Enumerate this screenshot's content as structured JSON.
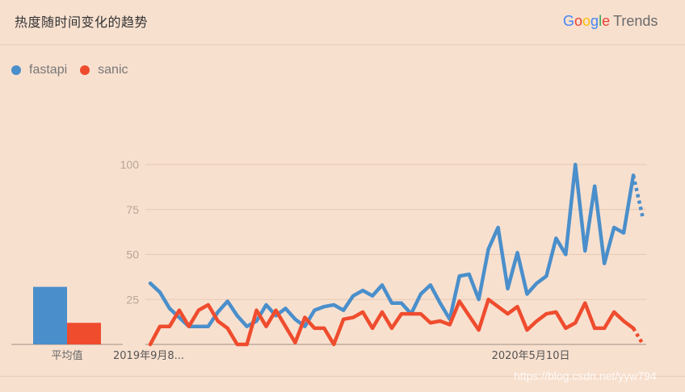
{
  "header": {
    "title": "热度随时间变化的趋势",
    "brand": {
      "google": "Google",
      "product": "Trends"
    }
  },
  "legend": [
    {
      "name": "fastapi",
      "color": "#4a8fcb"
    },
    {
      "name": "sanic",
      "color": "#ef4c2e"
    }
  ],
  "average": {
    "label": "平均值",
    "values": [
      32,
      12
    ]
  },
  "watermark": "https://blog.csdn.net/yyw794",
  "chart_data": {
    "type": "line",
    "ylim": [
      0,
      100
    ],
    "y_ticks": [
      25,
      50,
      75,
      100
    ],
    "x_tick_labels": [
      {
        "index": 0,
        "label": "2019年9月8..."
      },
      {
        "index": 36,
        "label": "2020年5月10日"
      }
    ],
    "partial_from_index": 50,
    "series": [
      {
        "name": "fastapi",
        "color": "#4a8fcb",
        "values": [
          34,
          29,
          20,
          15,
          10,
          10,
          10,
          18,
          24,
          16,
          10,
          13,
          22,
          16,
          20,
          14,
          10,
          19,
          21,
          22,
          19,
          27,
          30,
          27,
          33,
          23,
          23,
          17,
          28,
          33,
          23,
          14,
          38,
          39,
          25,
          53,
          65,
          31,
          51,
          28,
          34,
          38,
          59,
          50,
          100,
          52,
          88,
          45,
          65,
          62,
          94,
          70
        ]
      },
      {
        "name": "sanic",
        "color": "#ef4c2e",
        "values": [
          0,
          10,
          10,
          19,
          10,
          19,
          22,
          13,
          9,
          0,
          0,
          19,
          10,
          19,
          10,
          1,
          15,
          9,
          9,
          0,
          14,
          15,
          18,
          9,
          18,
          9,
          17,
          17,
          17,
          12,
          13,
          11,
          24,
          16,
          8,
          25,
          21,
          17,
          21,
          8,
          13,
          17,
          18,
          9,
          12,
          23,
          9,
          9,
          18,
          13,
          9,
          0
        ]
      }
    ]
  }
}
